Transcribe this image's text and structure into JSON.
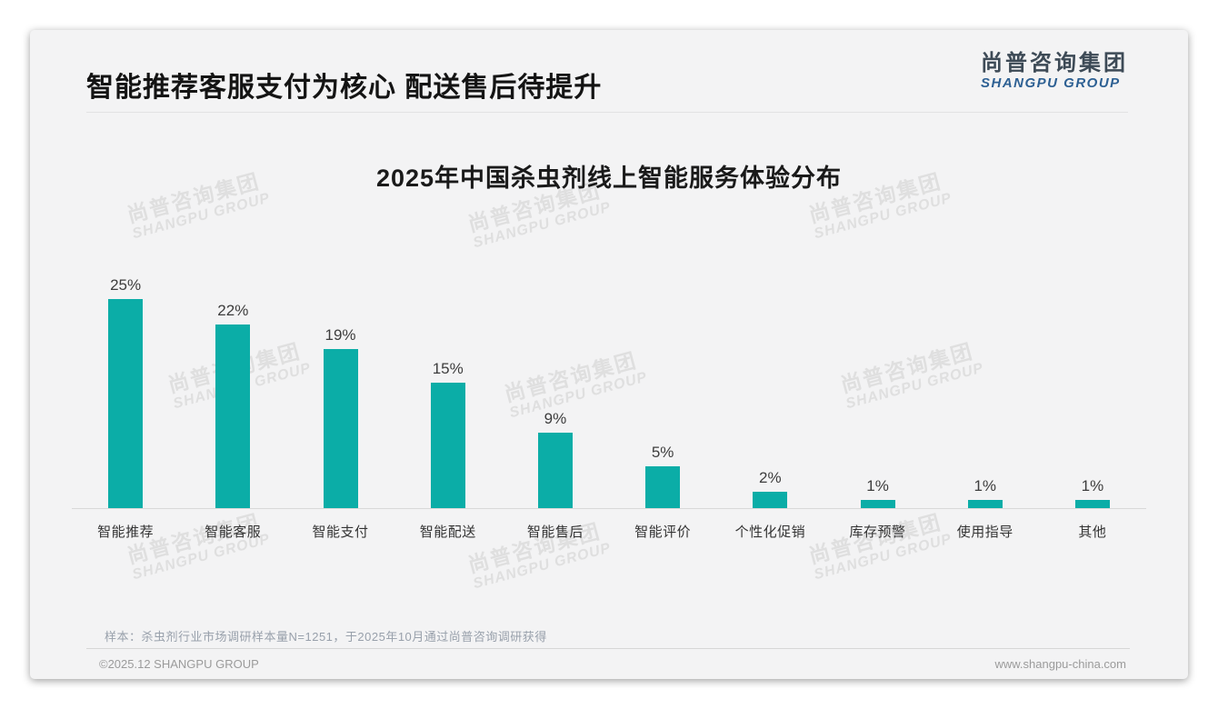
{
  "header": {
    "title": "智能推荐客服支付为核心 配送售后待提升"
  },
  "logo": {
    "cn": "尚普咨询集团",
    "en": "SHANGPU GROUP"
  },
  "watermark": {
    "line1": "尚普咨询集团",
    "line2": "SHANGPU GROUP"
  },
  "chart_data": {
    "type": "bar",
    "title": "2025年中国杀虫剂线上智能服务体验分布",
    "categories": [
      "智能推荐",
      "智能客服",
      "智能支付",
      "智能配送",
      "智能售后",
      "智能评价",
      "个性化促销",
      "库存预警",
      "使用指导",
      "其他"
    ],
    "values": [
      25,
      22,
      19,
      15,
      9,
      5,
      2,
      1,
      1,
      1
    ],
    "unit": "%",
    "value_labels": [
      "25%",
      "22%",
      "19%",
      "15%",
      "9%",
      "5%",
      "2%",
      "1%",
      "1%",
      "1%"
    ],
    "bar_color": "#0bada7",
    "xlabel": "",
    "ylabel": "",
    "ylim": [
      0,
      27
    ],
    "grid": false,
    "legend": false
  },
  "footnote": "样本：杀虫剂行业市场调研样本量N=1251，于2025年10月通过尚普咨询调研获得",
  "footer": {
    "copyright": "©2025.12 SHANGPU GROUP",
    "website": "www.shangpu-china.com"
  }
}
